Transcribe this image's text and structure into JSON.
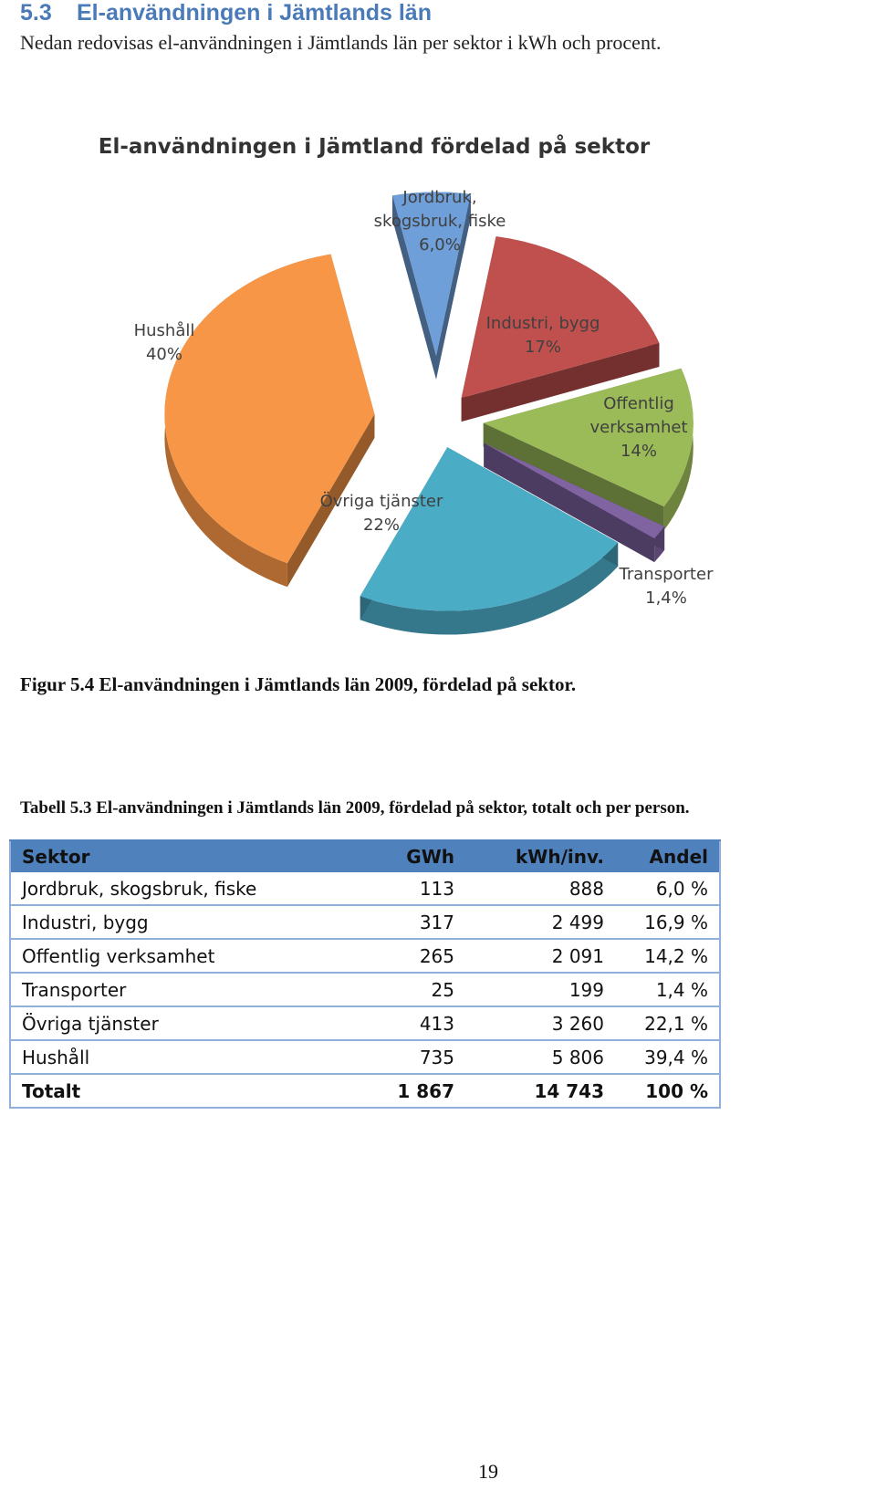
{
  "heading": {
    "number": "5.3",
    "title": "El-användningen i Jämtlands län"
  },
  "intro": "Nedan redovisas el-användningen i Jämtlands län per sektor i kWh och procent.",
  "chart_data": {
    "type": "pie",
    "title": "El-användningen i Jämtland fördelad på sektor",
    "slices": [
      {
        "name": "Jordbruk, skogsbruk, fiske",
        "label_lines": [
          "Jordbruk,",
          "skogsbruk, fiske"
        ],
        "value_label": "6,0%",
        "value": 6.0,
        "color": "#6f9fd8"
      },
      {
        "name": "Industri, bygg",
        "label_lines": [
          "Industri, bygg"
        ],
        "value_label": "17%",
        "value": 17,
        "color": "#c0504d"
      },
      {
        "name": "Offentlig verksamhet",
        "label_lines": [
          "Offentlig",
          "verksamhet"
        ],
        "value_label": "14%",
        "value": 14,
        "color": "#9bbb59"
      },
      {
        "name": "Transporter",
        "label_lines": [
          "Transporter"
        ],
        "value_label": "1,4%",
        "value": 1.4,
        "color": "#8064a2"
      },
      {
        "name": "Övriga tjänster",
        "label_lines": [
          "Övriga tjänster"
        ],
        "value_label": "22%",
        "value": 22,
        "color": "#4bacc6"
      },
      {
        "name": "Hushåll",
        "label_lines": [
          "Hushåll"
        ],
        "value_label": "40%",
        "value": 40,
        "color": "#f79646"
      }
    ]
  },
  "figure_caption": "Figur 5.4 El-användningen i Jämtlands län 2009, fördelad på sektor.",
  "table_caption": "Tabell 5.3 El-användningen i Jämtlands län 2009, fördelad på sektor, totalt och per person.",
  "table": {
    "headers": [
      "Sektor",
      "GWh",
      "kWh/inv.",
      "Andel"
    ],
    "rows": [
      [
        "Jordbruk, skogsbruk, fiske",
        "113",
        "888",
        "6,0 %"
      ],
      [
        "Industri, bygg",
        "317",
        "2 499",
        "16,9 %"
      ],
      [
        "Offentlig verksamhet",
        "265",
        "2 091",
        "14,2 %"
      ],
      [
        "Transporter",
        "25",
        "199",
        "1,4 %"
      ],
      [
        "Övriga tjänster",
        "413",
        "3 260",
        "22,1 %"
      ],
      [
        "Hushåll",
        "735",
        "5 806",
        "39,4 %"
      ]
    ],
    "total": [
      "Totalt",
      "1 867",
      "14 743",
      "100 %"
    ]
  },
  "page_number": "19"
}
